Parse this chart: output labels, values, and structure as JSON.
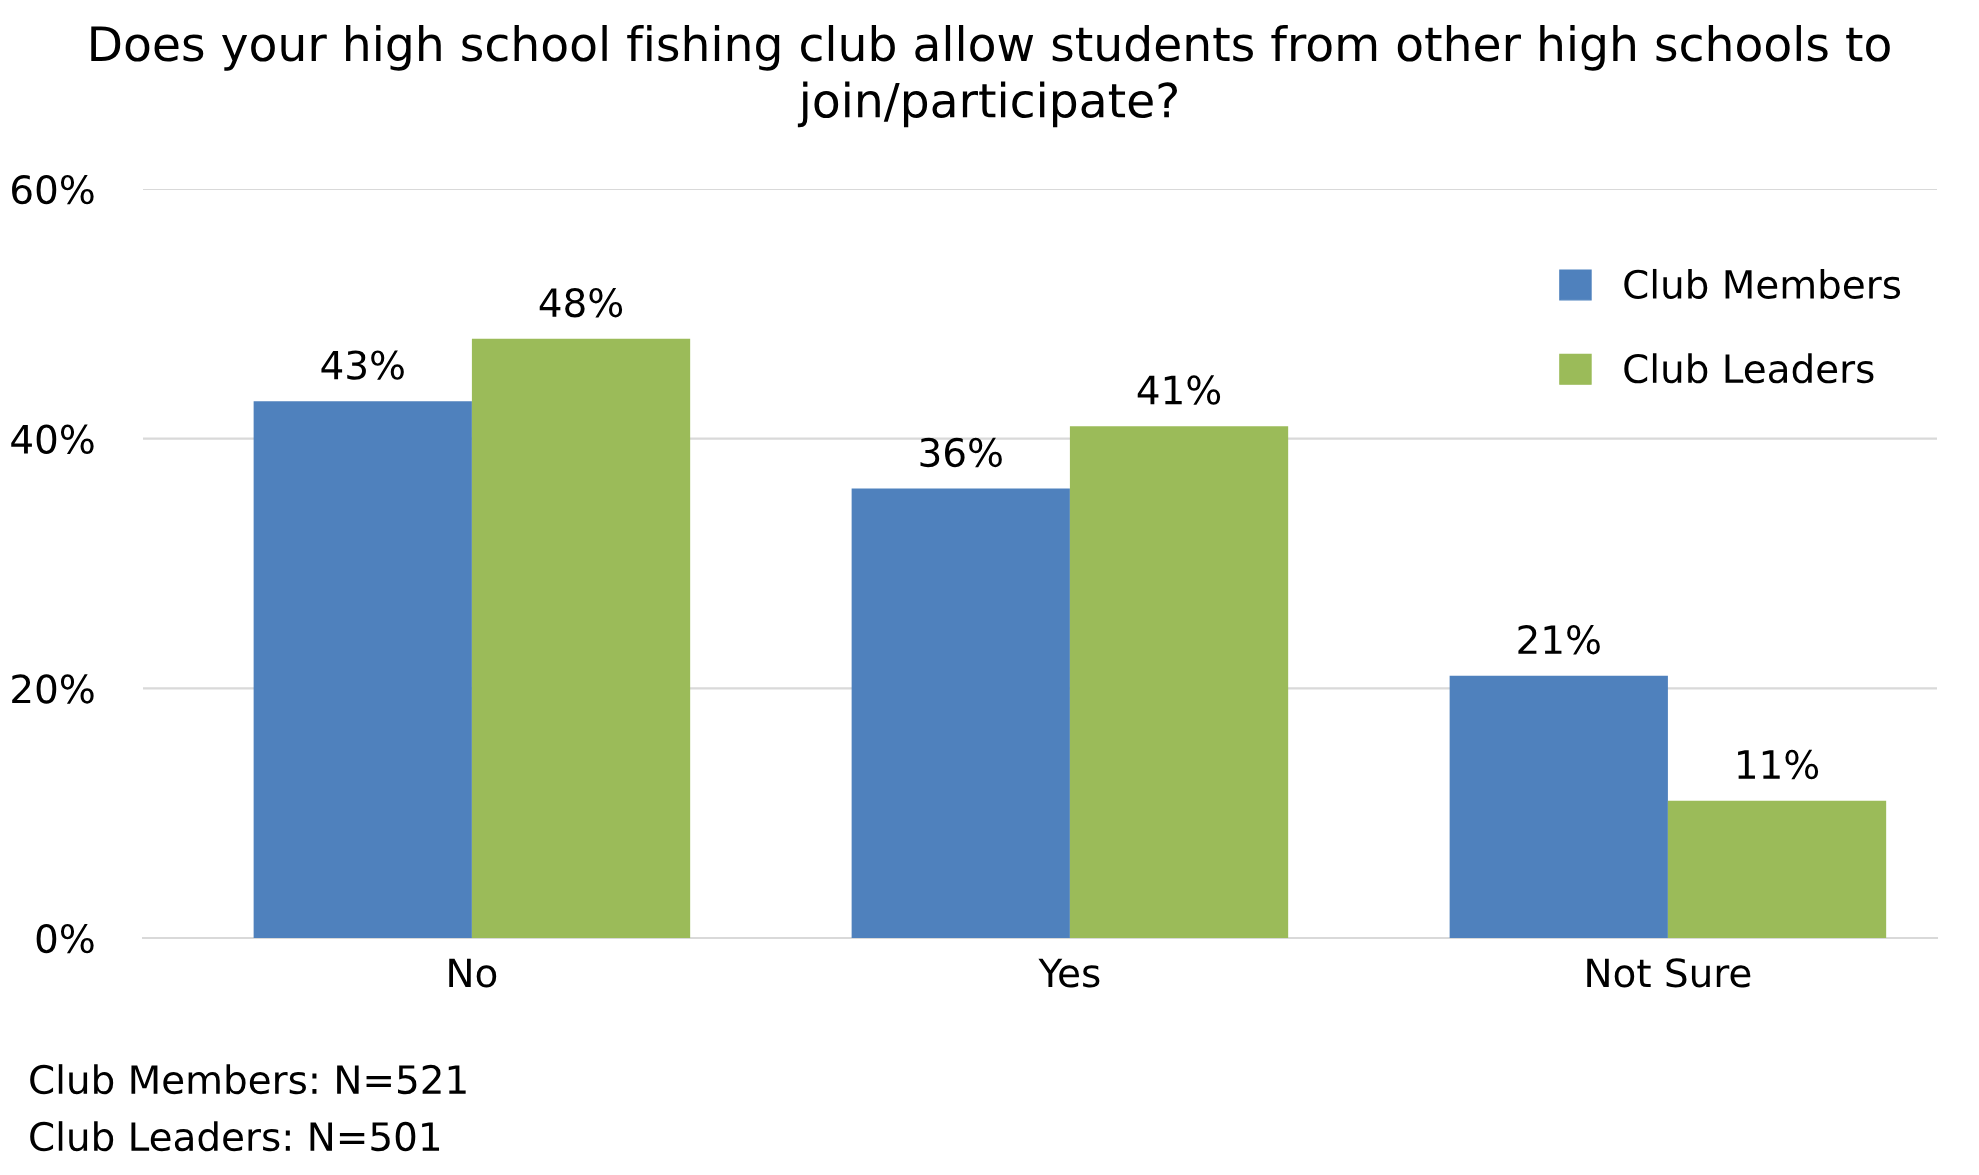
{
  "chart_data": {
    "type": "bar",
    "title": "Does your high school fishing club allow students from other high schools to join/participate?",
    "categories": [
      "No",
      "Yes",
      "Not Sure"
    ],
    "series": [
      {
        "name": "Club Members",
        "color": "#4f81bd",
        "values": [
          43,
          36,
          21
        ],
        "value_labels": [
          "43%",
          "36%",
          "21%"
        ]
      },
      {
        "name": "Club Leaders",
        "color": "#9bbb59",
        "values": [
          48,
          41,
          11
        ],
        "value_labels": [
          "48%",
          "41%",
          "11%"
        ]
      }
    ],
    "ylim": [
      0,
      60
    ],
    "yticks": [
      {
        "value": 0,
        "label": "0%"
      },
      {
        "value": 20,
        "label": "20%"
      },
      {
        "value": 40,
        "label": "40%"
      },
      {
        "value": 60,
        "label": "60%"
      }
    ],
    "grid": "y",
    "legend": "top right",
    "annotations": [
      "Club Members: N=521",
      "Club Leaders: N=501"
    ]
  }
}
